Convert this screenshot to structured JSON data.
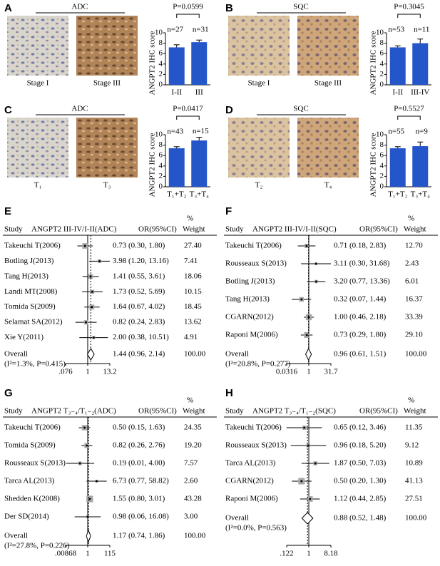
{
  "chart_data": [
    {
      "type": "bar",
      "panel": "A",
      "label": "ADC",
      "images": [
        "Stage I",
        "Stage III"
      ],
      "categories": [
        "I-II",
        "III"
      ],
      "values": [
        7.2,
        8.2
      ],
      "errors": [
        0.5,
        0.4
      ],
      "n_labels": [
        "n=27",
        "n=31"
      ],
      "p_label": "P=0.0599",
      "ylabel": "ANGPT2 IHC score",
      "ylim": [
        0,
        10
      ],
      "yticks": [
        0,
        2,
        4,
        6,
        8,
        10
      ],
      "color": "#2456c9"
    },
    {
      "type": "bar",
      "panel": "B",
      "label": "SQC",
      "images": [
        "Stage I",
        "Stage III"
      ],
      "categories": [
        "I-II",
        "III-IV"
      ],
      "values": [
        7.2,
        8.0
      ],
      "errors": [
        0.3,
        0.8
      ],
      "n_labels": [
        "n=53",
        "n=11"
      ],
      "p_label": "P=0.3045",
      "ylabel": "ANGPT2 IHC score",
      "ylim": [
        0,
        10
      ],
      "yticks": [
        0,
        2,
        4,
        6,
        8,
        10
      ],
      "color": "#2456c9"
    },
    {
      "type": "bar",
      "panel": "C",
      "label": "ADC",
      "images": [
        "T₁",
        "T₃"
      ],
      "categories": [
        "T₁+T₂",
        "T₃+T₄"
      ],
      "values": [
        7.4,
        8.9
      ],
      "errors": [
        0.3,
        0.6
      ],
      "n_labels": [
        "n=43",
        "n=15"
      ],
      "p_label": "P=0.0417",
      "ylabel": "ANGPT2 IHC score",
      "ylim": [
        0,
        10
      ],
      "yticks": [
        0,
        2,
        4,
        6,
        8,
        10
      ],
      "color": "#2456c9"
    },
    {
      "type": "bar",
      "panel": "D",
      "label": "SQC",
      "images": [
        "T₂",
        "T₄"
      ],
      "categories": [
        "T₁+T₂",
        "T₃+T₄"
      ],
      "values": [
        7.4,
        7.8
      ],
      "errors": [
        0.3,
        0.8
      ],
      "n_labels": [
        "n=55",
        "n=9"
      ],
      "p_label": "P=0.5527",
      "ylabel": "ANGPT2 IHC score",
      "ylim": [
        0,
        10
      ],
      "yticks": [
        0,
        2,
        4,
        6,
        8,
        10
      ],
      "color": "#2456c9"
    },
    {
      "type": "forest",
      "panel": "E",
      "header": {
        "study": "Study",
        "title": "ANGPT2 III-IV/I-II(ADC)",
        "ci": "OR(95%CI)",
        "pct": "%",
        "weight": "Weight"
      },
      "rows": [
        {
          "study": "Takeuchi T(2006)",
          "or": 0.73,
          "lo": 0.3,
          "hi": 1.8,
          "weight": 27.4,
          "ci_label": "0.73 (0.30, 1.80)",
          "weight_label": "27.40"
        },
        {
          "study": "Botling J(2013)",
          "or": 3.98,
          "lo": 1.2,
          "hi": 13.16,
          "weight": 7.41,
          "ci_label": "3.98 (1.20, 13.16)",
          "weight_label": "7.41"
        },
        {
          "study": "Tang H(2013)",
          "or": 1.41,
          "lo": 0.55,
          "hi": 3.61,
          "weight": 18.06,
          "ci_label": "1.41 (0.55, 3.61)",
          "weight_label": "18.06"
        },
        {
          "study": "Landi MT(2008)",
          "or": 1.73,
          "lo": 0.52,
          "hi": 5.69,
          "weight": 10.15,
          "ci_label": "1.73 (0.52, 5.69)",
          "weight_label": "10.15"
        },
        {
          "study": "Tomida S(2009)",
          "or": 1.64,
          "lo": 0.67,
          "hi": 4.02,
          "weight": 18.45,
          "ci_label": "1.64 (0.67, 4.02)",
          "weight_label": "18.45"
        },
        {
          "study": "Selamat SA(2012)",
          "or": 0.82,
          "lo": 0.24,
          "hi": 2.83,
          "weight": 13.62,
          "ci_label": "0.82 (0.24, 2.83)",
          "weight_label": "13.62"
        },
        {
          "study": "Xie Y(2011)",
          "or": 2.0,
          "lo": 0.38,
          "hi": 10.51,
          "weight": 4.91,
          "ci_label": "2.00 (0.38, 10.51)",
          "weight_label": "4.91"
        }
      ],
      "overall": {
        "label": "Overall",
        "heterogeneity": "(I²=1.3%, P=0.415)",
        "or": 1.44,
        "lo": 0.96,
        "hi": 2.14,
        "ci_label": "1.44 (0.96, 2.14)",
        "weight_label": "100.00"
      },
      "xlim": [
        0.076,
        13.2
      ],
      "xticks": [
        {
          "value": 0.076,
          "label": ".076"
        },
        1,
        13.2
      ],
      "log": true,
      "null_line": 1
    },
    {
      "type": "forest",
      "panel": "F",
      "header": {
        "study": "Study",
        "title": "ANGPT2 III-IV/I-II(SQC)",
        "ci": "OR(95%CI)",
        "pct": "%",
        "weight": "Weight"
      },
      "rows": [
        {
          "study": "Takeuchi T(2006)",
          "or": 0.71,
          "lo": 0.18,
          "hi": 2.83,
          "weight": 12.7,
          "ci_label": "0.71 (0.18, 2.83)",
          "weight_label": "12.70"
        },
        {
          "study": "Rousseaux S(2013)",
          "or": 3.11,
          "lo": 0.3,
          "hi": 31.68,
          "weight": 2.43,
          "ci_label": "3.11 (0.30, 31.68)",
          "weight_label": "2.43"
        },
        {
          "study": "Botling J(2013)",
          "or": 3.2,
          "lo": 0.77,
          "hi": 13.36,
          "weight": 6.01,
          "ci_label": "3.20 (0.77, 13.36)",
          "weight_label": "6.01"
        },
        {
          "study": "Tang H(2013)",
          "or": 0.32,
          "lo": 0.07,
          "hi": 1.44,
          "weight": 16.37,
          "ci_label": "0.32 (0.07, 1.44)",
          "weight_label": "16.37"
        },
        {
          "study": "CGARN(2012)",
          "or": 1.0,
          "lo": 0.46,
          "hi": 2.18,
          "weight": 33.39,
          "ci_label": "1.00 (0.46, 2.18)",
          "weight_label": "33.39"
        },
        {
          "study": "Raponi M(2006)",
          "or": 0.73,
          "lo": 0.29,
          "hi": 1.8,
          "weight": 29.1,
          "ci_label": "0.73 (0.29, 1.80)",
          "weight_label": "29.10"
        }
      ],
      "overall": {
        "label": "Overall",
        "heterogeneity": "(I²=20.8%, P=0.277)",
        "or": 0.96,
        "lo": 0.61,
        "hi": 1.51,
        "ci_label": "0.96 (0.61, 1.51)",
        "weight_label": "100.00"
      },
      "xlim": [
        0.0316,
        31.7
      ],
      "xticks": [
        {
          "value": 0.0316,
          "label": "0.0316"
        },
        1,
        31.7
      ],
      "log": true,
      "null_line": 1
    },
    {
      "type": "forest",
      "panel": "G",
      "header": {
        "study": "Study",
        "title": "ANGPT2 T₃₋₄/T₁₋₂(ADC)",
        "ci": "OR(95%CI)",
        "pct": "%",
        "weight": "Weight"
      },
      "rows": [
        {
          "study": "Takeuchi T(2006)",
          "or": 0.5,
          "lo": 0.15,
          "hi": 1.63,
          "weight": 24.35,
          "ci_label": "0.50 (0.15, 1.63)",
          "weight_label": "24.35"
        },
        {
          "study": "Tomida S(2009)",
          "or": 0.82,
          "lo": 0.26,
          "hi": 2.76,
          "weight": 19.2,
          "ci_label": "0.82 (0.26, 2.76)",
          "weight_label": "19.20"
        },
        {
          "study": "Rousseaux S(2013)",
          "or": 0.19,
          "lo": 0.01,
          "hi": 4.0,
          "weight": 7.57,
          "ci_label": "0.19 (0.01, 4.00)",
          "weight_label": "7.57"
        },
        {
          "study": "Tarca AL(2013)",
          "or": 6.73,
          "lo": 0.77,
          "hi": 58.82,
          "weight": 2.6,
          "ci_label": "6.73 (0.77, 58.82)",
          "weight_label": "2.60"
        },
        {
          "study": "Shedden K(2008)",
          "or": 1.55,
          "lo": 0.8,
          "hi": 3.01,
          "weight": 43.28,
          "ci_label": "1.55 (0.80, 3.01)",
          "weight_label": "43.28"
        },
        {
          "study": "Der SD(2014)",
          "or": 0.98,
          "lo": 0.06,
          "hi": 16.08,
          "weight": 3.0,
          "ci_label": "0.98 (0.06, 16.08)",
          "weight_label": "3.00"
        }
      ],
      "overall": {
        "label": "Overall",
        "heterogeneity": "(I²=27.8%, P=0.226)",
        "or": 1.17,
        "lo": 0.74,
        "hi": 1.86,
        "ci_label": "1.17 (0.74, 1.86)",
        "weight_label": "100.00"
      },
      "xlim": [
        0.00868,
        115
      ],
      "xticks": [
        {
          "value": 0.00868,
          "label": ".00868"
        },
        1,
        115
      ],
      "log": true,
      "null_line": 1
    },
    {
      "type": "forest",
      "panel": "H",
      "header": {
        "study": "Study",
        "title": "ANGPT2 T₃₋₄/T₁₋₂(SQC)",
        "ci": "OR(95%CI)",
        "pct": "%",
        "weight": "Weight"
      },
      "rows": [
        {
          "study": "Takeuchi T(2006)",
          "or": 0.65,
          "lo": 0.12,
          "hi": 3.46,
          "weight": 11.35,
          "ci_label": "0.65 (0.12, 3.46)",
          "weight_label": "11.35"
        },
        {
          "study": "Rousseaux S(2013)",
          "or": 0.96,
          "lo": 0.18,
          "hi": 5.2,
          "weight": 9.12,
          "ci_label": "0.96 (0.18, 5.20)",
          "weight_label": "9.12"
        },
        {
          "study": "Tarca AL(2013)",
          "or": 1.87,
          "lo": 0.5,
          "hi": 7.03,
          "weight": 10.89,
          "ci_label": "1.87 (0.50, 7.03)",
          "weight_label": "10.89"
        },
        {
          "study": "CGARN(2012)",
          "or": 0.5,
          "lo": 0.2,
          "hi": 1.3,
          "weight": 41.13,
          "ci_label": "0.50 (0.20, 1.30)",
          "weight_label": "41.13"
        },
        {
          "study": "Raponi M(2006)",
          "or": 1.12,
          "lo": 0.44,
          "hi": 2.85,
          "weight": 27.51,
          "ci_label": "1.12 (0.44, 2.85)",
          "weight_label": "27.51"
        }
      ],
      "overall": {
        "label": "Overall",
        "heterogeneity": "(I²=0.0%, P=0.563)",
        "or": 0.88,
        "lo": 0.52,
        "hi": 1.48,
        "ci_label": "0.88 (0.52, 1.48)",
        "weight_label": "100.00"
      },
      "xlim": [
        0.122,
        8.18
      ],
      "xticks": [
        {
          "value": 0.122,
          "label": ".122"
        },
        1,
        8.18
      ],
      "log": true,
      "null_line": 1
    }
  ]
}
